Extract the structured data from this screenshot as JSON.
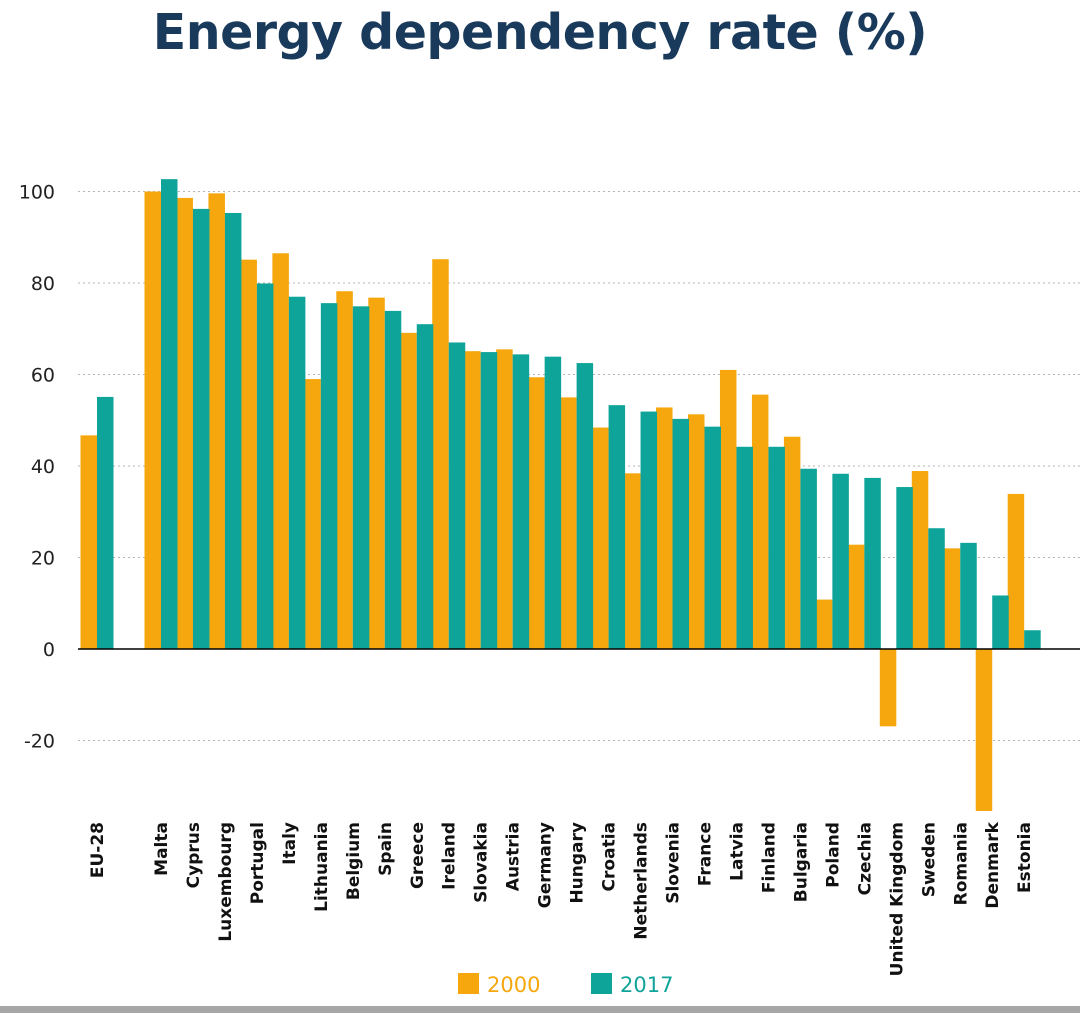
{
  "chart_data": {
    "type": "bar",
    "title": "Energy dependency rate (%)",
    "xlabel": "",
    "ylabel": "",
    "ylim": [
      -35,
      105
    ],
    "yticks": [
      100,
      80,
      60,
      40,
      20,
      0,
      -20
    ],
    "grid": true,
    "legend_position": "bottom",
    "categories": [
      "EU-28",
      "Malta",
      "Cyprus",
      "Luxembourg",
      "Portugal",
      "Italy",
      "Lithuania",
      "Belgium",
      "Spain",
      "Greece",
      "Ireland",
      "Slovakia",
      "Austria",
      "Germany",
      "Hungary",
      "Croatia",
      "Netherlands",
      "Slovenia",
      "France",
      "Latvia",
      "Finland",
      "Bulgaria",
      "Poland",
      "Czechia",
      "United Kingdom",
      "Sweden",
      "Romania",
      "Denmark",
      "Estonia"
    ],
    "series": [
      {
        "name": "2000",
        "color": "#f5a70d",
        "values": [
          46.7,
          100.0,
          98.6,
          99.6,
          85.1,
          86.5,
          59.0,
          78.2,
          76.8,
          69.1,
          85.2,
          65.1,
          65.5,
          59.4,
          55.0,
          48.4,
          38.4,
          52.8,
          51.3,
          61.0,
          55.6,
          46.4,
          10.8,
          22.8,
          -16.9,
          38.9,
          22.0,
          -35.4,
          33.9
        ]
      },
      {
        "name": "2017",
        "color": "#0fa49a",
        "values": [
          55.1,
          102.7,
          96.2,
          95.3,
          79.9,
          77.0,
          75.6,
          74.9,
          73.9,
          71.0,
          67.0,
          64.9,
          64.4,
          63.9,
          62.5,
          53.3,
          51.9,
          50.3,
          48.6,
          44.2,
          44.2,
          39.4,
          38.3,
          37.4,
          35.4,
          26.4,
          23.2,
          11.7,
          4.1
        ]
      }
    ]
  }
}
